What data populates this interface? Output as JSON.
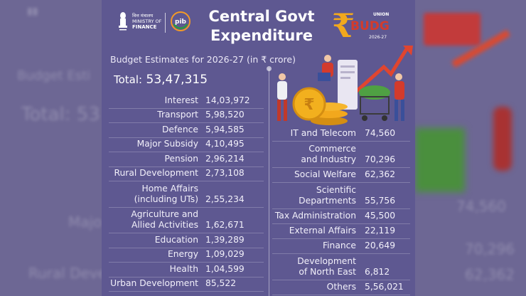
{
  "header": {
    "ministry_hindi": "वित्त मंत्रालय",
    "ministry_line1": "MINISTRY OF",
    "ministry_line2": "FINANCE",
    "pib_logo_text": "pib",
    "title_line1": "Central Govt",
    "title_line2": "Expenditure",
    "budget_logo": {
      "small": "UNION",
      "big": "BUDGET",
      "year": "2026-27"
    }
  },
  "subtitle": "Budget Estimates for 2026-27 (in ₹ crore)",
  "total": {
    "label": "Total:",
    "value": "53,47,315"
  },
  "left_items": [
    {
      "label": [
        "Interest"
      ],
      "value": "14,03,972"
    },
    {
      "label": [
        "Transport"
      ],
      "value": "5,98,520"
    },
    {
      "label": [
        "Defence"
      ],
      "value": "5,94,585"
    },
    {
      "label": [
        "Major Subsidy"
      ],
      "value": "4,10,495"
    },
    {
      "label": [
        "Pension"
      ],
      "value": "2,96,214"
    },
    {
      "label": [
        "Rural Development"
      ],
      "value": "2,73,108"
    },
    {
      "label": [
        "Home Affairs",
        "(including UTs)"
      ],
      "value": "2,55,234"
    },
    {
      "label": [
        "Agriculture and",
        "Allied Activities"
      ],
      "value": "1,62,671"
    },
    {
      "label": [
        "Education"
      ],
      "value": "1,39,289"
    },
    {
      "label": [
        "Energy"
      ],
      "value": "1,09,029"
    },
    {
      "label": [
        "Health"
      ],
      "value": "1,04,599"
    },
    {
      "label": [
        "Urban Development"
      ],
      "value": "85,522"
    }
  ],
  "right_items": [
    {
      "label": [
        "IT and Telecom"
      ],
      "value": "74,560"
    },
    {
      "label": [
        "Commerce",
        "and Industry"
      ],
      "value": "70,296"
    },
    {
      "label": [
        "Social Welfare"
      ],
      "value": "62,362"
    },
    {
      "label": [
        "Scientific",
        "Departments"
      ],
      "value": "55,756"
    },
    {
      "label": [
        "Tax Administration"
      ],
      "value": "45,500"
    },
    {
      "label": [
        "External Affairs"
      ],
      "value": "22,119"
    },
    {
      "label": [
        "Finance"
      ],
      "value": "20,649"
    },
    {
      "label": [
        "Development",
        "of North East"
      ],
      "value": "6,812"
    },
    {
      "label": [
        "Others"
      ],
      "value": "5,56,021"
    }
  ],
  "blurred_background": {
    "left": [
      "Budget Esti",
      "Total: 53",
      "Majo",
      "Rural Develo"
    ],
    "right": [
      "74,560",
      "70,296",
      "62,362"
    ]
  },
  "colors": {
    "card": "#5e5891",
    "accent_red": "#d33b2c",
    "gold": "#f2a81d"
  }
}
